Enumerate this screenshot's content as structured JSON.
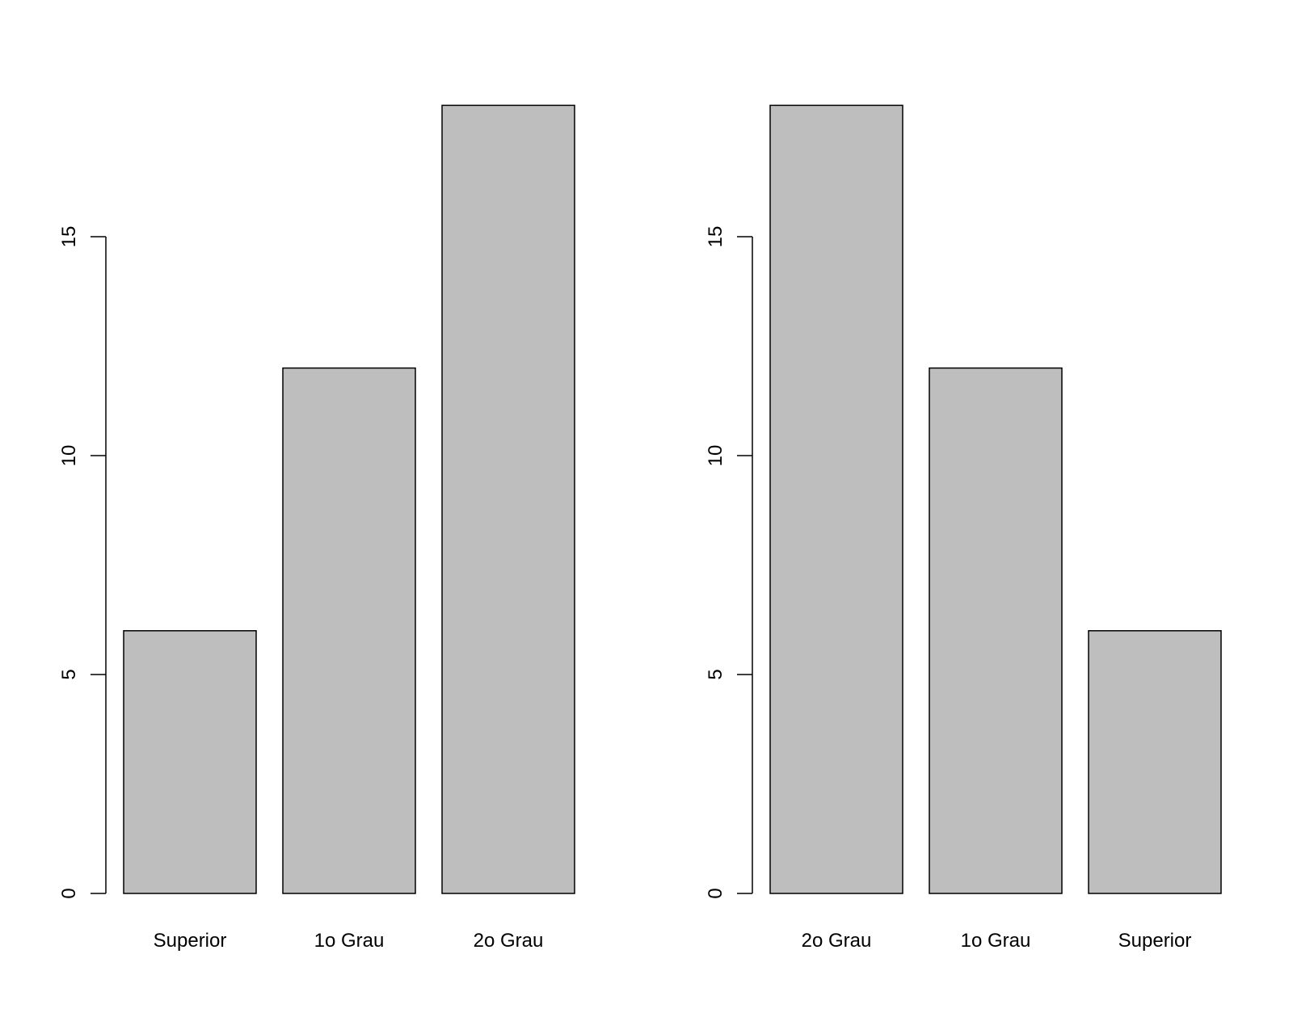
{
  "chart_data": [
    {
      "type": "bar",
      "categories": [
        "Superior",
        "1o Grau",
        "2o Grau"
      ],
      "values": [
        6,
        12,
        18
      ],
      "yticks": [
        0,
        5,
        10,
        15
      ],
      "ylim": [
        0,
        18
      ],
      "bar_color": "#bebebe",
      "grid": false
    },
    {
      "type": "bar",
      "categories": [
        "2o Grau",
        "1o Grau",
        "Superior"
      ],
      "values": [
        18,
        12,
        6
      ],
      "yticks": [
        0,
        5,
        10,
        15
      ],
      "ylim": [
        0,
        18
      ],
      "bar_color": "#bebebe",
      "grid": false
    }
  ]
}
